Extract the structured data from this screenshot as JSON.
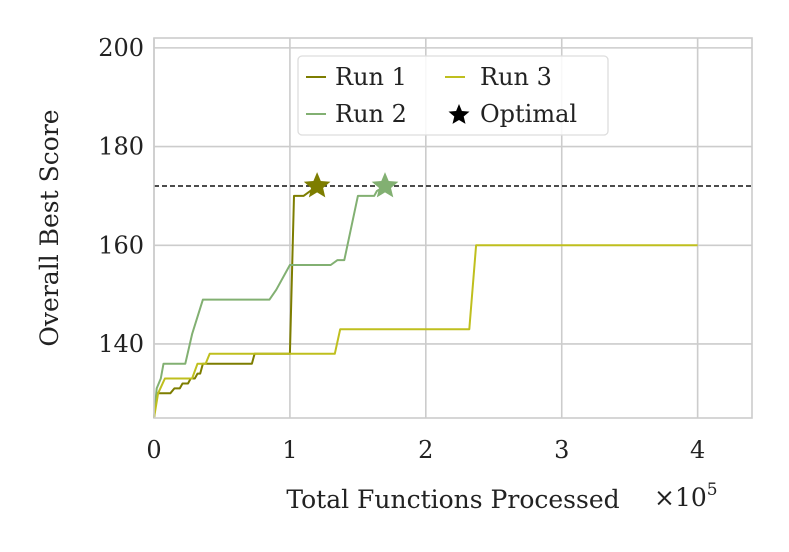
{
  "chart_data": {
    "type": "line",
    "title": "",
    "xlabel": "Total Functions Processed",
    "ylabel": "Overall Best Score",
    "x_multiplier_label": "×10",
    "x_multiplier_exponent": "5",
    "xlim": [
      0,
      440000
    ],
    "ylim": [
      125,
      202
    ],
    "xticks": [
      0,
      100000,
      200000,
      300000,
      400000
    ],
    "xtick_labels": [
      "0",
      "1",
      "2",
      "3",
      "4"
    ],
    "yticks": [
      140,
      160,
      180,
      200
    ],
    "ytick_labels": [
      "140",
      "160",
      "180",
      "200"
    ],
    "grid": true,
    "legend_position": "top-center",
    "optimal_value": 172,
    "series": [
      {
        "name": "Run 1",
        "color": "#7d7d00",
        "points": [
          [
            0,
            125
          ],
          [
            2000,
            130
          ],
          [
            12000,
            130
          ],
          [
            15000,
            131
          ],
          [
            19000,
            131
          ],
          [
            21000,
            132
          ],
          [
            25000,
            132
          ],
          [
            27000,
            133
          ],
          [
            30000,
            133
          ],
          [
            32000,
            134
          ],
          [
            34000,
            134
          ],
          [
            36000,
            136
          ],
          [
            40000,
            136
          ],
          [
            42000,
            136
          ],
          [
            72000,
            136
          ],
          [
            74000,
            138
          ],
          [
            100000,
            138
          ],
          [
            103000,
            170
          ],
          [
            110000,
            170
          ],
          [
            120000,
            172
          ]
        ],
        "optimal": [
          120000,
          172
        ]
      },
      {
        "name": "Run 2",
        "color": "#82b072",
        "points": [
          [
            0,
            125
          ],
          [
            2000,
            131
          ],
          [
            5000,
            133
          ],
          [
            7000,
            136
          ],
          [
            20000,
            136
          ],
          [
            23000,
            136
          ],
          [
            28000,
            142
          ],
          [
            36000,
            149
          ],
          [
            85000,
            149
          ],
          [
            90000,
            151
          ],
          [
            98000,
            155
          ],
          [
            100000,
            156
          ],
          [
            130000,
            156
          ],
          [
            135000,
            157
          ],
          [
            140000,
            157
          ],
          [
            150000,
            170
          ],
          [
            162000,
            170
          ],
          [
            164000,
            171
          ],
          [
            170000,
            172
          ]
        ],
        "optimal": [
          170000,
          172
        ]
      },
      {
        "name": "Run 3",
        "color": "#bfbf1e",
        "points": [
          [
            0,
            125
          ],
          [
            3000,
            130
          ],
          [
            8000,
            133
          ],
          [
            28000,
            133
          ],
          [
            32000,
            136
          ],
          [
            38000,
            136
          ],
          [
            41000,
            138
          ],
          [
            133000,
            138
          ],
          [
            137000,
            143
          ],
          [
            232000,
            143
          ],
          [
            237000,
            160
          ],
          [
            400000,
            160
          ]
        ]
      }
    ],
    "legend": [
      "Run 1",
      "Run 2",
      "Run 3",
      "Optimal"
    ]
  }
}
